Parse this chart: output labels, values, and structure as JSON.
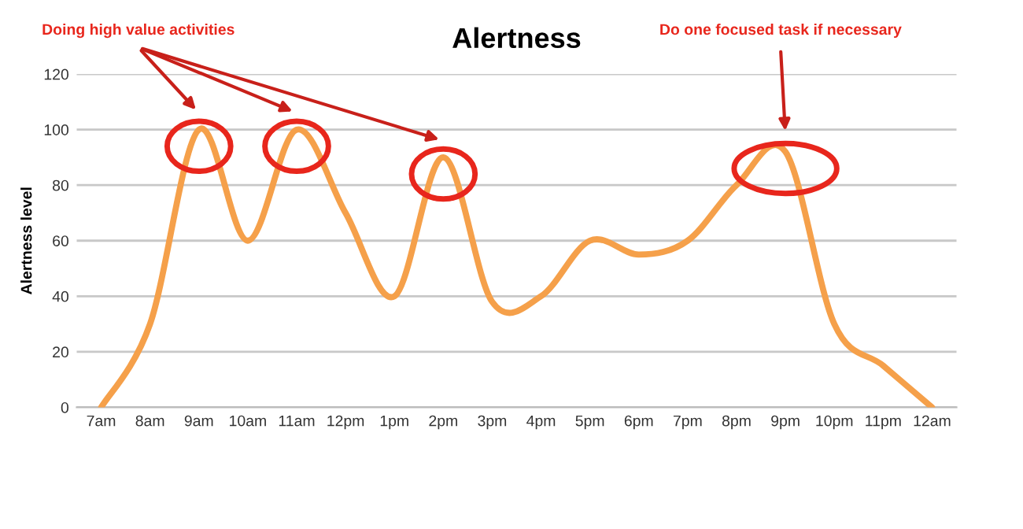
{
  "chart_data": {
    "type": "line",
    "title": "Alertness",
    "ylabel": "Alertness level",
    "categories": [
      "7am",
      "8am",
      "9am",
      "10am",
      "11am",
      "12pm",
      "1pm",
      "2pm",
      "3pm",
      "4pm",
      "5pm",
      "6pm",
      "7pm",
      "8pm",
      "9pm",
      "10pm",
      "11pm",
      "12am"
    ],
    "series": [
      {
        "color": "#f5a04a",
        "values": [
          0,
          30,
          100,
          60,
          100,
          70,
          40,
          90,
          38,
          40,
          60,
          55,
          60,
          80,
          92,
          30,
          15,
          0
        ]
      }
    ],
    "ylim": [
      0,
      120
    ],
    "yticks": [
      0,
      20,
      40,
      60,
      80,
      100,
      120
    ],
    "grid": "y",
    "marker": "none",
    "line_style": "solid",
    "annotations": [
      "Doing high value activities",
      "Do one focused task if necessary"
    ]
  }
}
